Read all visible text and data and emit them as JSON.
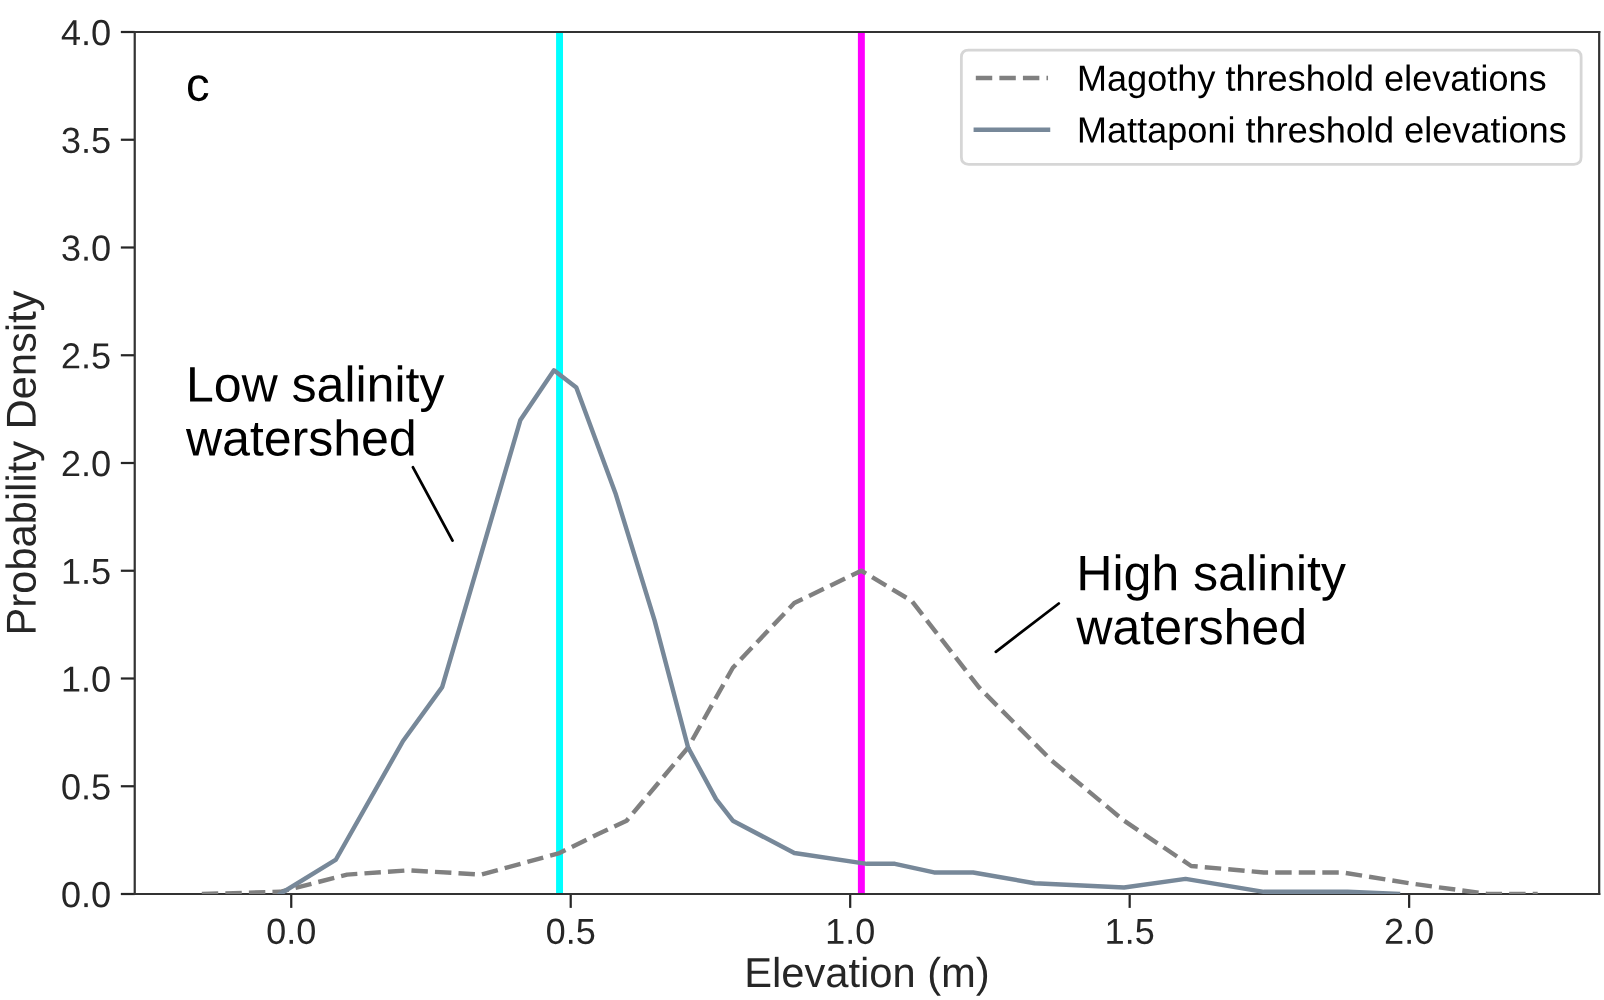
{
  "chart_data": {
    "type": "line",
    "xlabel": "Elevation (m)",
    "ylabel": "Probability Density",
    "xlim": [
      -0.28,
      2.34
    ],
    "ylim": [
      0,
      4
    ],
    "xticks": [
      {
        "value": 0,
        "label": "0.0"
      },
      {
        "value": 0.5,
        "label": "0.5"
      },
      {
        "value": 1,
        "label": "1.0"
      },
      {
        "value": 1.5,
        "label": "1.5"
      },
      {
        "value": 2,
        "label": "2.0"
      }
    ],
    "yticks": [
      {
        "value": 0,
        "label": "0.0"
      },
      {
        "value": 0.5,
        "label": "0.5"
      },
      {
        "value": 1,
        "label": "1.0"
      },
      {
        "value": 1.5,
        "label": "1.5"
      },
      {
        "value": 2,
        "label": "2.0"
      },
      {
        "value": 2.5,
        "label": "2.5"
      },
      {
        "value": 3,
        "label": "3.0"
      },
      {
        "value": 3.5,
        "label": "3.5"
      },
      {
        "value": 4,
        "label": "4.0"
      }
    ],
    "grid": false,
    "legend": "top right",
    "series": [
      {
        "name": "Magothy threshold elevations",
        "color": "#808080",
        "line_style": "dashed",
        "x": [
          -0.16,
          -0.02,
          0.1,
          0.21,
          0.34,
          0.48,
          0.55,
          0.6,
          0.71,
          0.79,
          0.9,
          1.02,
          1.11,
          1.23,
          1.36,
          1.49,
          1.61,
          1.74,
          1.88,
          2.0,
          2.14,
          2.23
        ],
        "values": [
          0,
          0.01,
          0.09,
          0.11,
          0.09,
          0.19,
          0.28,
          0.34,
          0.68,
          1.05,
          1.35,
          1.5,
          1.36,
          0.96,
          0.62,
          0.34,
          0.13,
          0.1,
          0.1,
          0.05,
          0,
          0
        ]
      },
      {
        "name": "Mattaponi threshold elevations",
        "color": "#778899",
        "line_style": "solid",
        "x": [
          -0.02,
          0.08,
          0.2,
          0.27,
          0.34,
          0.41,
          0.47,
          0.51,
          0.58,
          0.65,
          0.71,
          0.76,
          0.79,
          0.9,
          1.03,
          1.08,
          1.15,
          1.22,
          1.33,
          1.49,
          1.6,
          1.74,
          1.89,
          1.98
        ],
        "values": [
          0,
          0.16,
          0.71,
          0.96,
          1.58,
          2.2,
          2.43,
          2.35,
          1.86,
          1.27,
          0.68,
          0.44,
          0.34,
          0.19,
          0.14,
          0.14,
          0.1,
          0.1,
          0.05,
          0.03,
          0.07,
          0.01,
          0.01,
          0
        ]
      }
    ],
    "ref_lines": [
      {
        "axis": "x",
        "value": 0.48,
        "color": "#00ffff"
      },
      {
        "axis": "x",
        "value": 1.02,
        "color": "#ff00ff"
      }
    ],
    "annotations": [
      "c",
      "Low salinity\nwatershed",
      "High salinity\nwatershed"
    ]
  }
}
